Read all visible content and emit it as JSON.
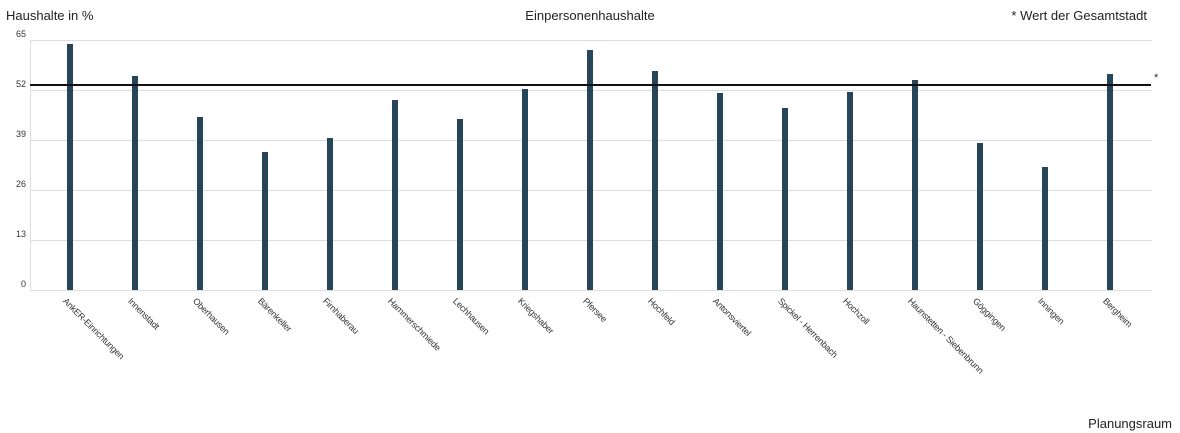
{
  "header": {
    "y_axis_title": "Haushalte in %",
    "chart_title": "Einpersonenhaushalte",
    "reference_note": "* Wert der Gesamtstadt",
    "x_axis_title": "Planungsraum",
    "reference_marker": "*"
  },
  "colors": {
    "bar": "#264559",
    "reference_line": "#111111",
    "grid": "#dddddd"
  },
  "y_ticks": [
    "65",
    "52",
    "39",
    "26",
    "13",
    "0"
  ],
  "chart_data": {
    "type": "bar",
    "title": "Einpersonenhaushalte",
    "xlabel": "Planungsraum",
    "ylabel": "Haushalte in %",
    "ylim": [
      0,
      65
    ],
    "yticks": [
      0,
      13,
      26,
      39,
      52,
      65
    ],
    "grid": true,
    "legend": "* Wert der Gesamtstadt",
    "legend_position": "top-right",
    "reference_line": {
      "label": "Wert der Gesamtstadt",
      "value": 53.4
    },
    "categories": [
      "AnkER-Einrichtungen",
      "Innenstadt",
      "Oberhausen",
      "Bärenkeller",
      "Firnhaberau",
      "Hammerschmiede",
      "Lechhausen",
      "Kriegshaber",
      "Pfersee",
      "Hochfeld",
      "Antonsviertel",
      "Spickel - Herrenbach",
      "Hochzoll",
      "Haunstetten - Siebenbrunn",
      "Göggingen",
      "Inningen",
      "Bergheim"
    ],
    "values": [
      64.0,
      55.7,
      45.1,
      36.0,
      39.6,
      49.5,
      44.5,
      52.3,
      62.5,
      57.0,
      51.3,
      47.4,
      51.6,
      54.7,
      38.3,
      32.1,
      56.2
    ]
  }
}
